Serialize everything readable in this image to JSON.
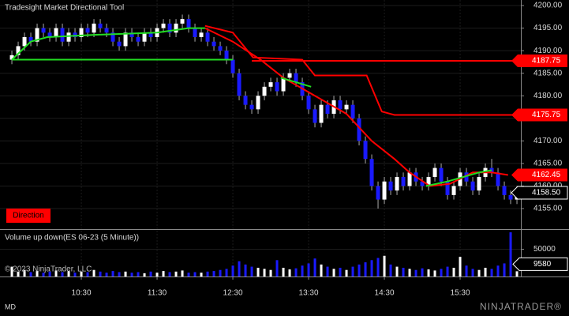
{
  "chart_data": {
    "type": "candlestick",
    "title": "Tradesight Market Directional Tool",
    "x": [
      575,
      580,
      585,
      590,
      595,
      600,
      605,
      610,
      615,
      620,
      625,
      630,
      635,
      640,
      645,
      650,
      655,
      660,
      665,
      670,
      675,
      680,
      685,
      690,
      695,
      700,
      705,
      710,
      715,
      720,
      725,
      730,
      735,
      740,
      745,
      750,
      755,
      760,
      765,
      770,
      775,
      780,
      785,
      790,
      795,
      800,
      805,
      810,
      815,
      820,
      825,
      830,
      835,
      840,
      845,
      850,
      855,
      860,
      865,
      870,
      875,
      880,
      885,
      890,
      895,
      900,
      905,
      910,
      915,
      920,
      925,
      930,
      935,
      940,
      945,
      950,
      955,
      960,
      965,
      970,
      975
    ],
    "open": [
      4188,
      4189,
      4191,
      4193,
      4192,
      4195,
      4194,
      4193,
      4195,
      4192,
      4194,
      4193,
      4195,
      4194,
      4196,
      4195,
      4194,
      4192,
      4191,
      4194,
      4193,
      4192,
      4194,
      4193,
      4195,
      4196,
      4194,
      4196,
      4197,
      4195,
      4193,
      4194,
      4192,
      4191,
      4190,
      4188,
      4185,
      4180,
      4178,
      4177,
      4180,
      4182,
      4183,
      4181,
      4184,
      4185,
      4183,
      4180,
      4177,
      4174,
      4178,
      4176,
      4179,
      4177,
      4178,
      4175,
      4170,
      4166,
      4160,
      4157,
      4161,
      4159,
      4162,
      4160,
      4163,
      4161,
      4160,
      4162,
      4164,
      4161,
      4158,
      4160,
      4163,
      4161,
      4159,
      4162,
      4164,
      4163,
      4160,
      4158,
      4157
    ],
    "high": [
      4190,
      4192,
      4194,
      4194,
      4196,
      4196,
      4195,
      4196,
      4196,
      4195,
      4195,
      4196,
      4196,
      4197,
      4197,
      4196,
      4195,
      4193,
      4195,
      4195,
      4194,
      4195,
      4195,
      4196,
      4197,
      4197,
      4197,
      4198,
      4198,
      4196,
      4195,
      4195,
      4193,
      4192,
      4191,
      4189,
      4186,
      4181,
      4179,
      4181,
      4183,
      4184,
      4184,
      4185,
      4186,
      4186,
      4184,
      4181,
      4178,
      4179,
      4179,
      4180,
      4180,
      4179,
      4179,
      4176,
      4171,
      4167,
      4161,
      4162,
      4162,
      4163,
      4163,
      4164,
      4164,
      4162,
      4163,
      4165,
      4165,
      4162,
      4161,
      4164,
      4164,
      4162,
      4163,
      4165,
      4166,
      4164,
      4161,
      4159,
      4160
    ],
    "low": [
      4187,
      4188,
      4190,
      4191,
      4191,
      4193,
      4192,
      4192,
      4191,
      4191,
      4192,
      4192,
      4193,
      4193,
      4194,
      4193,
      4191,
      4190,
      4190,
      4192,
      4191,
      4191,
      4192,
      4192,
      4194,
      4193,
      4193,
      4195,
      4194,
      4192,
      4192,
      4191,
      4190,
      4189,
      4187,
      4184,
      4179,
      4177,
      4176,
      4176,
      4179,
      4181,
      4180,
      4180,
      4183,
      4182,
      4179,
      4176,
      4173,
      4173,
      4175,
      4175,
      4176,
      4176,
      4174,
      4169,
      4165,
      4159,
      4155,
      4156,
      4158,
      4158,
      4159,
      4159,
      4160,
      4159,
      4159,
      4161,
      4160,
      4157,
      4157,
      4159,
      4160,
      4158,
      4158,
      4161,
      4162,
      4159,
      4157,
      4156,
      4156
    ],
    "close": [
      4189,
      4191,
      4193,
      4192,
      4195,
      4194,
      4193,
      4195,
      4192,
      4194,
      4193,
      4195,
      4194,
      4196,
      4195,
      4194,
      4192,
      4191,
      4194,
      4193,
      4192,
      4194,
      4193,
      4195,
      4196,
      4194,
      4196,
      4197,
      4195,
      4193,
      4194,
      4192,
      4191,
      4190,
      4188,
      4185,
      4180,
      4178,
      4177,
      4180,
      4182,
      4183,
      4181,
      4184,
      4185,
      4183,
      4180,
      4177,
      4174,
      4178,
      4176,
      4179,
      4177,
      4178,
      4175,
      4170,
      4166,
      4160,
      4157,
      4161,
      4159,
      4162,
      4160,
      4163,
      4161,
      4160,
      4162,
      4164,
      4161,
      4158,
      4160,
      4163,
      4161,
      4159,
      4162,
      4164,
      4163,
      4160,
      4158,
      4157,
      4158.5
    ],
    "up_color": "#ffffff",
    "down_color": "#1a1aff",
    "xlim": [
      565.6,
      978.1
    ],
    "xticks": [
      {
        "value": 630,
        "label": "10:30"
      },
      {
        "value": 690,
        "label": "11:30"
      },
      {
        "value": 750,
        "label": "12:30"
      },
      {
        "value": 810,
        "label": "13:30"
      },
      {
        "value": 870,
        "label": "14:30"
      },
      {
        "value": 930,
        "label": "15:30"
      }
    ],
    "ylim": [
      4150.45,
      4201.23
    ],
    "yticks": [
      {
        "value": 4155,
        "label": "4155.00"
      },
      {
        "value": 4160,
        "label": "4160.00"
      },
      {
        "value": 4165,
        "label": "4165.00"
      },
      {
        "value": 4170,
        "label": "4170.00"
      },
      {
        "value": 4175,
        "label": "4175.00"
      },
      {
        "value": 4180,
        "label": "4180.00"
      },
      {
        "value": 4185,
        "label": "4185.00"
      },
      {
        "value": 4190,
        "label": "4190.00"
      },
      {
        "value": 4195,
        "label": "4195.00"
      },
      {
        "value": 4200,
        "label": "4200.00"
      }
    ],
    "grid": true,
    "lines": [
      {
        "color": "#ff0000",
        "x": [
          728,
          750,
          772,
          790,
          815,
          840,
          860,
          878,
          890,
          906,
          922,
          940,
          955,
          968
        ],
        "values": [
          4195,
          4192,
          4188,
          4184,
          4180,
          4176,
          4170,
          4166,
          4163,
          4160,
          4160.5,
          4163,
          4163,
          4162.45
        ]
      },
      {
        "color": "#ff0000",
        "x": [
          728,
          750,
          766,
          805,
          815,
          856,
          868,
          878,
          978.1
        ],
        "values": [
          4195.5,
          4194,
          4188.5,
          4188,
          4184.5,
          4184.5,
          4176.5,
          4175.75,
          4175.75
        ]
      },
      {
        "color": "#22dd22",
        "x": [
          575,
          590,
          603,
          640,
          690,
          715,
          728,
          760,
          788,
          800,
          812,
          860,
          903,
          920,
          945,
          955
        ],
        "values": [
          4188,
          4192,
          4193,
          4193.5,
          4194,
          4195,
          4195,
          null,
          4184,
          4183,
          4182,
          null,
          4160,
          4161,
          4163,
          4163.5
        ]
      }
    ],
    "levels": [
      {
        "value": 4188,
        "color": "#22dd22",
        "x": [
          575,
          750
        ]
      },
      {
        "value": 4187.75,
        "color": "#ff0000",
        "x": [
          765,
          978.1
        ]
      }
    ],
    "price_markers": [
      {
        "value": 4187.75,
        "color": "#ff0000"
      },
      {
        "value": 4175.75,
        "color": "#ff0000"
      },
      {
        "value": 4162.45,
        "color": "#ff0000"
      },
      {
        "value": 4158.5,
        "label": "4158.50",
        "color": "#000000"
      }
    ],
    "signal": {
      "label": "Direction",
      "color": "#ff0000"
    },
    "volume": {
      "title": "Volume up down(ES 06-23 (5 Minute))",
      "values": [
        18000,
        9000,
        12000,
        8000,
        10000,
        7000,
        9000,
        11000,
        8000,
        10000,
        7000,
        9000,
        8000,
        12000,
        9000,
        7000,
        10000,
        8000,
        9000,
        7000,
        8000,
        6000,
        9000,
        7000,
        10000,
        8000,
        9000,
        11000,
        7000,
        8000,
        7000,
        9000,
        10000,
        12000,
        14000,
        20000,
        28000,
        22000,
        18000,
        16000,
        14000,
        12000,
        30000,
        16000,
        13000,
        15000,
        20000,
        24000,
        33000,
        22000,
        18000,
        14000,
        16000,
        12000,
        18000,
        22000,
        26000,
        30000,
        34000,
        38000,
        22000,
        18000,
        16000,
        14000,
        12000,
        15000,
        13000,
        11000,
        14000,
        18000,
        16000,
        36000,
        20000,
        14000,
        12000,
        16000,
        14000,
        20000,
        24000,
        81000,
        9580
      ],
      "ylim": [
        0,
        84000
      ],
      "yticks": [
        50000
      ]
    },
    "copyright": "© 2023 NinjaTrader, LLC",
    "footer": "MD",
    "brand": "NINJATRADER®"
  }
}
